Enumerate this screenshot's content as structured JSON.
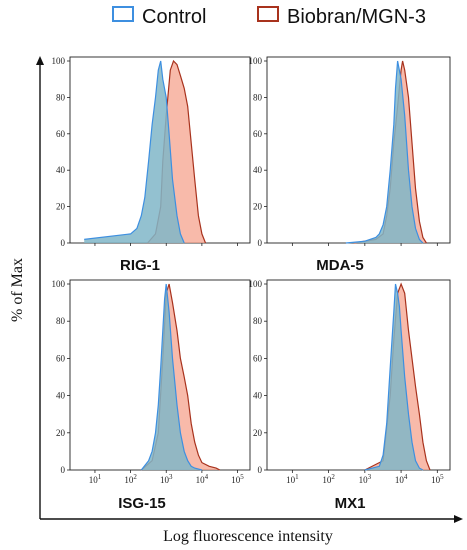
{
  "chart_data": {
    "type": "area",
    "colors": {
      "control_stroke": "#3d8fe0",
      "control_fill": "#80b6c8",
      "treated_stroke": "#a8321d",
      "treated_fill": "#f5a38d",
      "shared_fill": "#89acc0"
    },
    "legend": [
      {
        "name": "Control",
        "stroke": "#3d8fe0"
      },
      {
        "name": "Biobran/MGN-3",
        "stroke": "#a8321d"
      }
    ],
    "ylabel": "% of Max",
    "xlabel": "Log fluorescence intensity",
    "x_scale": "log10",
    "ylim": [
      0,
      100
    ],
    "y_ticks": [
      "0",
      "20",
      "40",
      "60",
      "80",
      "100"
    ],
    "panels": [
      {
        "label": "RIG-1",
        "series": [
          {
            "name": "Control",
            "x": [
              5,
              100,
              150,
              200,
              250,
              320,
              400,
              500,
              600,
              700,
              800,
              1000,
              1200,
              1500,
              2000,
              2500,
              3200
            ],
            "y": [
              2,
              5,
              8,
              15,
              25,
              45,
              65,
              80,
              95,
              100,
              90,
              80,
              60,
              35,
              15,
              5,
              0
            ]
          },
          {
            "name": "Biobran/MGN-3",
            "x": [
              300,
              500,
              700,
              800,
              1000,
              1300,
              1600,
              2000,
              2500,
              3200,
              4000,
              5000,
              6300,
              8000,
              10000,
              12600
            ],
            "y": [
              0,
              5,
              20,
              45,
              70,
              95,
              100,
              98,
              92,
              85,
              75,
              55,
              35,
              15,
              5,
              0
            ]
          }
        ]
      },
      {
        "label": "MDA-5",
        "series": [
          {
            "name": "Control",
            "x": [
              300,
              1000,
              2000,
              2500,
              3200,
              4000,
              5000,
              6300,
              7000,
              8000,
              10000,
              12600,
              16000,
              20000,
              25000,
              32000,
              40000
            ],
            "y": [
              0,
              1,
              3,
              5,
              10,
              20,
              40,
              65,
              85,
              100,
              90,
              70,
              40,
              20,
              8,
              2,
              0
            ]
          },
          {
            "name": "Biobran/MGN-3",
            "x": [
              500,
              2000,
              3200,
              4000,
              5000,
              6300,
              8000,
              10000,
              11000,
              12600,
              16000,
              20000,
              25000,
              32000,
              40000,
              50000
            ],
            "y": [
              0,
              2,
              5,
              15,
              30,
              55,
              75,
              95,
              100,
              95,
              80,
              55,
              30,
              12,
              3,
              0
            ]
          }
        ]
      },
      {
        "label": "ISG-15",
        "series": [
          {
            "name": "Control",
            "x": [
              200,
              320,
              400,
              500,
              600,
              700,
              800,
              900,
              1000,
              1200,
              1500,
              2000,
              2500,
              3200,
              4000,
              5000,
              6300,
              10000
            ],
            "y": [
              0,
              5,
              10,
              20,
              35,
              55,
              75,
              92,
              100,
              85,
              60,
              35,
              20,
              10,
              5,
              2,
              1,
              0
            ]
          },
          {
            "name": "Biobran/MGN-3",
            "x": [
              200,
              400,
              600,
              800,
              1000,
              1200,
              1500,
              2000,
              2500,
              3200,
              4000,
              5000,
              6300,
              8000,
              10000,
              16000,
              25000,
              32000
            ],
            "y": [
              0,
              5,
              20,
              60,
              95,
              100,
              90,
              75,
              60,
              50,
              40,
              25,
              15,
              8,
              4,
              2,
              1,
              0
            ]
          }
        ]
      },
      {
        "label": "MX1",
        "series": [
          {
            "name": "Control",
            "x": [
              1000,
              2500,
              3200,
              4000,
              5000,
              6300,
              7000,
              8000,
              9000,
              10000,
              12600,
              16000,
              20000,
              25000,
              32000,
              40000
            ],
            "y": [
              0,
              2,
              8,
              25,
              55,
              85,
              100,
              95,
              88,
              75,
              50,
              30,
              15,
              5,
              1,
              0
            ]
          },
          {
            "name": "Biobran/MGN-3",
            "x": [
              1000,
              3200,
              5000,
              6300,
              8000,
              10000,
              12600,
              16000,
              20000,
              25000,
              32000,
              40000,
              50000,
              63000
            ],
            "y": [
              0,
              5,
              40,
              70,
              95,
              100,
              95,
              75,
              60,
              45,
              30,
              15,
              5,
              0
            ]
          }
        ]
      }
    ]
  }
}
